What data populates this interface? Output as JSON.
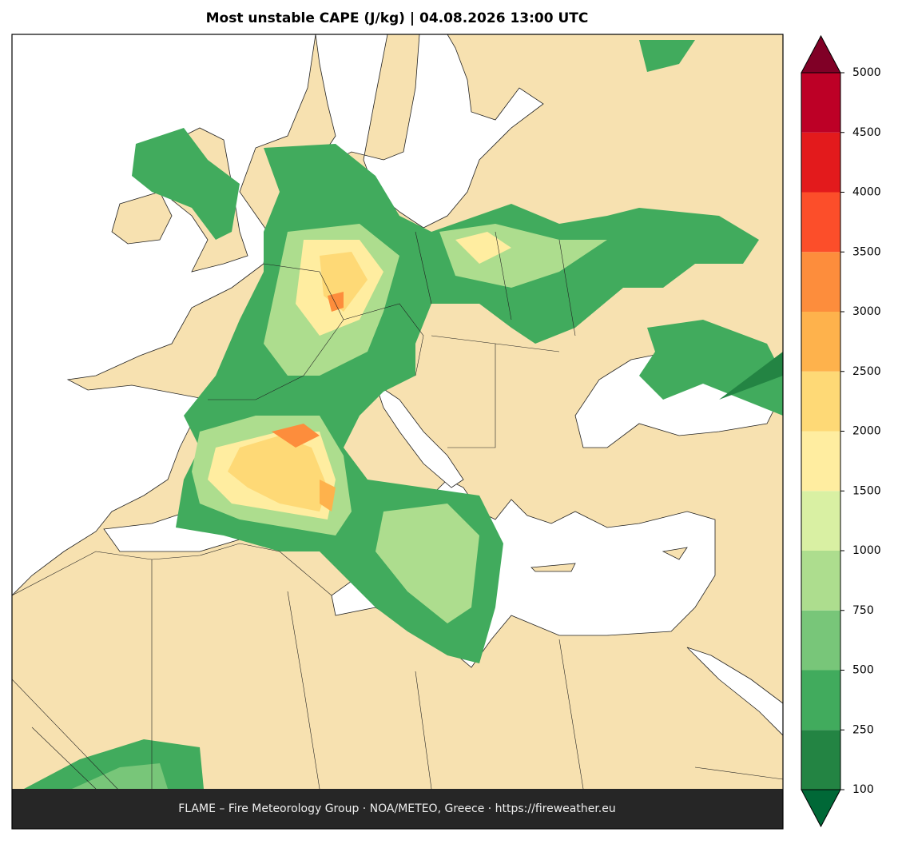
{
  "title": "Most unstable CAPE (J/kg)  |  04.08.2026 13:00 UTC",
  "footer": "FLAME – Fire Meteorology Group · NOA/METEO, Greece · https://fireweather.eu",
  "colorbar": {
    "levels": [
      100,
      250,
      500,
      750,
      1000,
      1500,
      2000,
      2500,
      3000,
      3500,
      4000,
      4500,
      5000
    ],
    "colors": [
      "#238443",
      "#41ab5d",
      "#78c679",
      "#addd8e",
      "#d9f0a3",
      "#ffeda0",
      "#fed976",
      "#feb24c",
      "#fd8d3c",
      "#fc4e2a",
      "#e31a1c",
      "#bd0026"
    ],
    "under_color": "#006837",
    "over_color": "#800026"
  }
}
